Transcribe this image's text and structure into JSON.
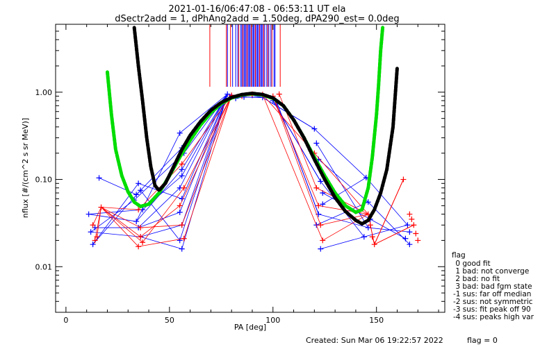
{
  "header": {
    "title_line1": "2021-01-16/06:47:08 - 06:53:11 UT ela",
    "title_line2": "dSectr2add = 1, dPhAng2add = 1.50deg, dPA290_est=    0.0deg"
  },
  "footer": {
    "created": "Created: Sun Mar 06 19:22:57 2022",
    "flag": "flag = 0"
  },
  "flag_legend": {
    "title": "flag",
    "items": [
      " 0 good fit",
      " 1 bad: not converge",
      " 2 bad: no fit",
      " 3 bad: bad fgm state",
      "-1 sus: far off median",
      "-2 sus: not symmetric",
      "-3 sus: fit peak off 90",
      "-4 sus: peaks high var"
    ]
  },
  "colors": {
    "series_a": "#ff0000",
    "series_b": "#0000ff",
    "fit_a": "#00dd00",
    "fit_b": "#000000",
    "axes": "#000000"
  },
  "chart_data": {
    "type": "scatter",
    "xlabel": "PA [deg]",
    "ylabel": "nflux [#/(cm^2 s sr MeV)]",
    "xlim": [
      -5,
      183
    ],
    "ylim": [
      0.003,
      6.0
    ],
    "yscale": "log",
    "x_ticks": [
      0,
      50,
      100,
      150
    ],
    "y_ticks": [
      {
        "value": 0.01,
        "label": "0.01"
      },
      {
        "value": 0.1,
        "label": "0.10"
      },
      {
        "value": 1.0,
        "label": "1.00"
      }
    ],
    "pa_markers": {
      "red": [
        69.5,
        77.5,
        79.5,
        83.5,
        85.5,
        87.5,
        89.5,
        91.5,
        93.5,
        95.5,
        97.5,
        99.5,
        103.5
      ],
      "blue": [
        78.0,
        80.5,
        82.0,
        83.0,
        84.5,
        85.0,
        86.0,
        86.5,
        87.0,
        88.0,
        88.5,
        89.0,
        90.0,
        90.5,
        91.0,
        92.0,
        92.5,
        93.0,
        94.0,
        94.5,
        95.0,
        96.0,
        97.0,
        98.0,
        99.0,
        100.5,
        101.0
      ]
    },
    "series": [
      {
        "color": "#0000ff",
        "points": [
          [
            11,
            0.04
          ],
          [
            12,
            0.025
          ],
          [
            13,
            0.018
          ],
          [
            14,
            0.028
          ],
          [
            16,
            0.104
          ],
          [
            34,
            0.033
          ],
          [
            35,
            0.028
          ],
          [
            36,
            0.022
          ],
          [
            33,
            0.058
          ],
          [
            34,
            0.067
          ],
          [
            35,
            0.09
          ],
          [
            36,
            0.075
          ],
          [
            37,
            0.045
          ],
          [
            55,
            0.34
          ],
          [
            56,
            0.23
          ],
          [
            56,
            0.13
          ],
          [
            55,
            0.08
          ],
          [
            56,
            0.06
          ],
          [
            55,
            0.042
          ],
          [
            56,
            0.03
          ],
          [
            55,
            0.02
          ],
          [
            56,
            0.016
          ],
          [
            57,
            0.2
          ],
          [
            56,
            0.11
          ],
          [
            78,
            0.95
          ],
          [
            80,
            0.9
          ],
          [
            82,
            0.85
          ],
          [
            86,
            0.88
          ],
          [
            90,
            0.92
          ],
          [
            95,
            0.87
          ],
          [
            100,
            0.8
          ],
          [
            102,
            0.75
          ],
          [
            120,
            0.38
          ],
          [
            121,
            0.26
          ],
          [
            122,
            0.17
          ],
          [
            123,
            0.095
          ],
          [
            124,
            0.07
          ],
          [
            124,
            0.052
          ],
          [
            122,
            0.04
          ],
          [
            121,
            0.03
          ],
          [
            123,
            0.016
          ],
          [
            145,
            0.105
          ],
          [
            146,
            0.055
          ],
          [
            147,
            0.035
          ],
          [
            146,
            0.028
          ],
          [
            144,
            0.022
          ],
          [
            165,
            0.03
          ],
          [
            166,
            0.025
          ],
          [
            164,
            0.021
          ],
          [
            166,
            0.018
          ]
        ]
      },
      {
        "color": "#ff0000",
        "points": [
          [
            13,
            0.03
          ],
          [
            14,
            0.02
          ],
          [
            15,
            0.022
          ],
          [
            17,
            0.048
          ],
          [
            35,
            0.045
          ],
          [
            36,
            0.028
          ],
          [
            37,
            0.019
          ],
          [
            35,
            0.017
          ],
          [
            36,
            0.022
          ],
          [
            56,
            0.15
          ],
          [
            57,
            0.08
          ],
          [
            55,
            0.05
          ],
          [
            56,
            0.03
          ],
          [
            57,
            0.021
          ],
          [
            80,
            0.92
          ],
          [
            85,
            0.9
          ],
          [
            90,
            0.95
          ],
          [
            95,
            0.94
          ],
          [
            100,
            0.9
          ],
          [
            103,
            0.95
          ],
          [
            120,
            0.2
          ],
          [
            121,
            0.08
          ],
          [
            122,
            0.05
          ],
          [
            123,
            0.03
          ],
          [
            124,
            0.02
          ],
          [
            146,
            0.04
          ],
          [
            147,
            0.03
          ],
          [
            148,
            0.022
          ],
          [
            149,
            0.018
          ],
          [
            163,
            0.1
          ],
          [
            166,
            0.04
          ],
          [
            167,
            0.035
          ],
          [
            168,
            0.03
          ],
          [
            169,
            0.024
          ],
          [
            170,
            0.02
          ]
        ]
      }
    ],
    "fit_curves": [
      {
        "color": "#00dd00",
        "points": [
          [
            20,
            1.7
          ],
          [
            22,
            0.55
          ],
          [
            24,
            0.22
          ],
          [
            27,
            0.11
          ],
          [
            30,
            0.072
          ],
          [
            33,
            0.055
          ],
          [
            36,
            0.049
          ],
          [
            40,
            0.052
          ],
          [
            45,
            0.07
          ],
          [
            50,
            0.11
          ],
          [
            55,
            0.18
          ],
          [
            60,
            0.28
          ],
          [
            65,
            0.42
          ],
          [
            70,
            0.58
          ],
          [
            75,
            0.74
          ],
          [
            80,
            0.86
          ],
          [
            85,
            0.93
          ],
          [
            90,
            0.96
          ],
          [
            95,
            0.93
          ],
          [
            100,
            0.85
          ],
          [
            105,
            0.7
          ],
          [
            110,
            0.48
          ],
          [
            115,
            0.3
          ],
          [
            120,
            0.18
          ],
          [
            125,
            0.11
          ],
          [
            130,
            0.07
          ],
          [
            135,
            0.05
          ],
          [
            140,
            0.042
          ],
          [
            143,
            0.045
          ],
          [
            146,
            0.08
          ],
          [
            148,
            0.18
          ],
          [
            150,
            0.55
          ],
          [
            151,
            1.2
          ],
          [
            152,
            3.0
          ],
          [
            153,
            5.5
          ]
        ]
      },
      {
        "color": "#000000",
        "points": [
          [
            33,
            5.5
          ],
          [
            35,
            2.0
          ],
          [
            37,
            0.8
          ],
          [
            39,
            0.3
          ],
          [
            41,
            0.14
          ],
          [
            43,
            0.085
          ],
          [
            45,
            0.075
          ],
          [
            48,
            0.09
          ],
          [
            52,
            0.14
          ],
          [
            56,
            0.22
          ],
          [
            60,
            0.32
          ],
          [
            65,
            0.46
          ],
          [
            70,
            0.62
          ],
          [
            75,
            0.76
          ],
          [
            80,
            0.87
          ],
          [
            85,
            0.94
          ],
          [
            90,
            0.97
          ],
          [
            95,
            0.94
          ],
          [
            100,
            0.86
          ],
          [
            105,
            0.7
          ],
          [
            110,
            0.48
          ],
          [
            115,
            0.3
          ],
          [
            120,
            0.17
          ],
          [
            125,
            0.1
          ],
          [
            130,
            0.062
          ],
          [
            135,
            0.043
          ],
          [
            140,
            0.034
          ],
          [
            143,
            0.031
          ],
          [
            146,
            0.034
          ],
          [
            149,
            0.045
          ],
          [
            152,
            0.07
          ],
          [
            155,
            0.13
          ],
          [
            158,
            0.4
          ],
          [
            160,
            1.9
          ]
        ]
      }
    ],
    "grid": false
  }
}
